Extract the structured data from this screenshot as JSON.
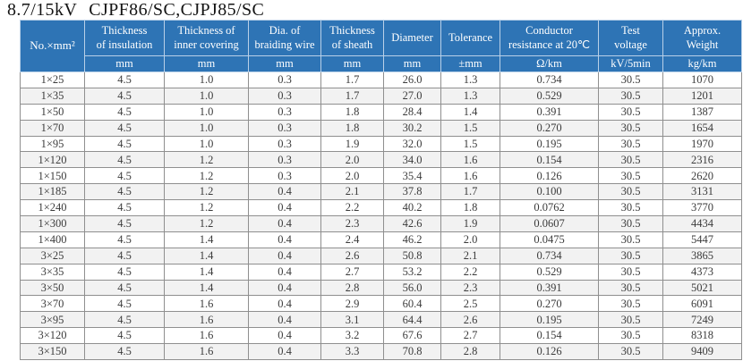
{
  "title": {
    "voltage": "8.7/15kV",
    "models": "CJPF86/SC,CJPJ85/SC"
  },
  "colors": {
    "header_bg": "#2E74B5",
    "header_text": "#ffffff",
    "grid_line": "#8f8f8f",
    "alt_row_bg": "#f2f2f2",
    "body_text": "#3b3b3b"
  },
  "table": {
    "columns": [
      {
        "id": "size",
        "label": "No.×mm²",
        "unit": ""
      },
      {
        "id": "insulation",
        "label": "Thickness\nof insulation",
        "unit": "mm"
      },
      {
        "id": "inner-covering",
        "label": "Thickness of\ninner covering",
        "unit": "mm"
      },
      {
        "id": "braiding-wire",
        "label": "Dia. of\nbraiding wire",
        "unit": "mm"
      },
      {
        "id": "sheath",
        "label": "Thickness\nof sheath",
        "unit": "mm"
      },
      {
        "id": "diameter",
        "label": "Diameter",
        "unit": "mm"
      },
      {
        "id": "tolerance",
        "label": "Tolerance",
        "unit": "±mm"
      },
      {
        "id": "resistance",
        "label": "Conductor\nresistance at 20℃",
        "unit": "Ω/km"
      },
      {
        "id": "test-voltage",
        "label": "Test\nvoltage",
        "unit": "kV/5min"
      },
      {
        "id": "weight",
        "label": "Approx.\nWeight",
        "unit": "kg/km"
      }
    ],
    "rows": [
      [
        "1×25",
        "4.5",
        "1.0",
        "0.3",
        "1.7",
        "26.0",
        "1.3",
        "0.734",
        "30.5",
        "1070"
      ],
      [
        "1×35",
        "4.5",
        "1.0",
        "0.3",
        "1.7",
        "27.0",
        "1.3",
        "0.529",
        "30.5",
        "1201"
      ],
      [
        "1×50",
        "4.5",
        "1.0",
        "0.3",
        "1.8",
        "28.4",
        "1.4",
        "0.391",
        "30.5",
        "1387"
      ],
      [
        "1×70",
        "4.5",
        "1.0",
        "0.3",
        "1.8",
        "30.2",
        "1.5",
        "0.270",
        "30.5",
        "1654"
      ],
      [
        "1×95",
        "4.5",
        "1.0",
        "0.3",
        "1.9",
        "32.0",
        "1.5",
        "0.195",
        "30.5",
        "1970"
      ],
      [
        "1×120",
        "4.5",
        "1.2",
        "0.3",
        "2.0",
        "34.0",
        "1.6",
        "0.154",
        "30.5",
        "2316"
      ],
      [
        "1×150",
        "4.5",
        "1.2",
        "0.3",
        "2.0",
        "35.4",
        "1.6",
        "0.126",
        "30.5",
        "2620"
      ],
      [
        "1×185",
        "4.5",
        "1.2",
        "0.4",
        "2.1",
        "37.8",
        "1.7",
        "0.100",
        "30.5",
        "3131"
      ],
      [
        "1×240",
        "4.5",
        "1.2",
        "0.4",
        "2.2",
        "40.2",
        "1.8",
        "0.0762",
        "30.5",
        "3770"
      ],
      [
        "1×300",
        "4.5",
        "1.2",
        "0.4",
        "2.3",
        "42.6",
        "1.9",
        "0.0607",
        "30.5",
        "4434"
      ],
      [
        "1×400",
        "4.5",
        "1.4",
        "0.4",
        "2.4",
        "46.2",
        "2.0",
        "0.0475",
        "30.5",
        "5447"
      ],
      [
        "3×25",
        "4.5",
        "1.4",
        "0.4",
        "2.6",
        "50.8",
        "2.1",
        "0.734",
        "30.5",
        "3865"
      ],
      [
        "3×35",
        "4.5",
        "1.4",
        "0.4",
        "2.7",
        "53.2",
        "2.2",
        "0.529",
        "30.5",
        "4373"
      ],
      [
        "3×50",
        "4.5",
        "1.4",
        "0.4",
        "2.8",
        "56.0",
        "2.3",
        "0.391",
        "30.5",
        "5021"
      ],
      [
        "3×70",
        "4.5",
        "1.6",
        "0.4",
        "2.9",
        "60.4",
        "2.5",
        "0.270",
        "30.5",
        "6091"
      ],
      [
        "3×95",
        "4.5",
        "1.6",
        "0.4",
        "3.1",
        "64.4",
        "2.6",
        "0.195",
        "30.5",
        "7249"
      ],
      [
        "3×120",
        "4.5",
        "1.6",
        "0.4",
        "3.2",
        "67.6",
        "2.7",
        "0.154",
        "30.5",
        "8318"
      ],
      [
        "3×150",
        "4.5",
        "1.6",
        "0.4",
        "3.3",
        "70.8",
        "2.8",
        "0.126",
        "30.5",
        "9409"
      ]
    ]
  }
}
